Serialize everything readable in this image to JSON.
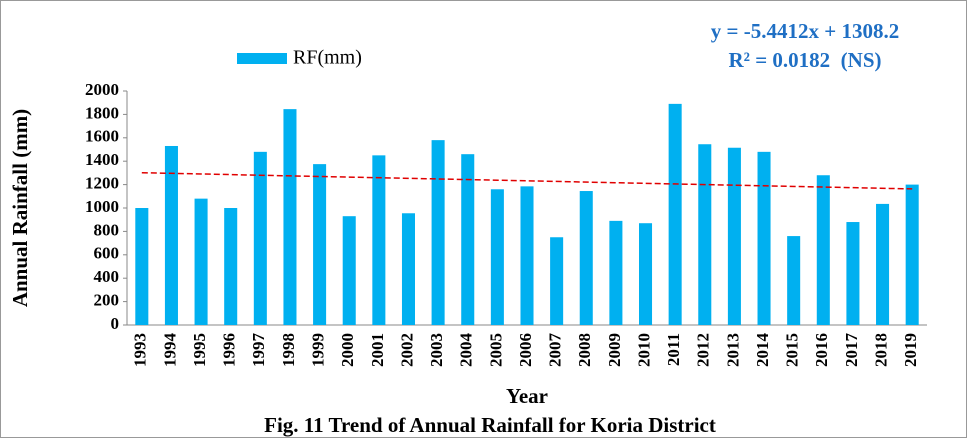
{
  "chart_data": {
    "type": "bar",
    "title": "Fig. 11 Trend of Annual Rainfall for Koria District",
    "x_label": "Year",
    "y_label": "Annual Rainfall (mm)",
    "annotations": [
      "y = -5.4412x + 1308.2",
      "R² = 0.0182  (NS)"
    ],
    "categories": [
      "1993",
      "1994",
      "1995",
      "1996",
      "1997",
      "1998",
      "1999",
      "2000",
      "2001",
      "2002",
      "2003",
      "2004",
      "2005",
      "2006",
      "2007",
      "2008",
      "2009",
      "2010",
      "2011",
      "2012",
      "2013",
      "2014",
      "2015",
      "2016",
      "2017",
      "2018",
      "2019"
    ],
    "series": [
      {
        "name": "RF(mm)",
        "color": "#00b0f0",
        "values": [
          1000,
          1530,
          1080,
          1000,
          1480,
          1845,
          1375,
          930,
          1450,
          955,
          1580,
          1460,
          1160,
          1185,
          750,
          1145,
          890,
          870,
          1890,
          1545,
          1515,
          1480,
          760,
          1280,
          880,
          1035,
          1200
        ]
      }
    ],
    "trendline": {
      "color": "#e00000",
      "dashed": true
    },
    "ylim": [
      0,
      2000
    ],
    "yticks": [
      0,
      200,
      400,
      600,
      800,
      1000,
      1200,
      1400,
      1600,
      1800,
      2000
    ],
    "grid": false,
    "legend": "top-left"
  }
}
